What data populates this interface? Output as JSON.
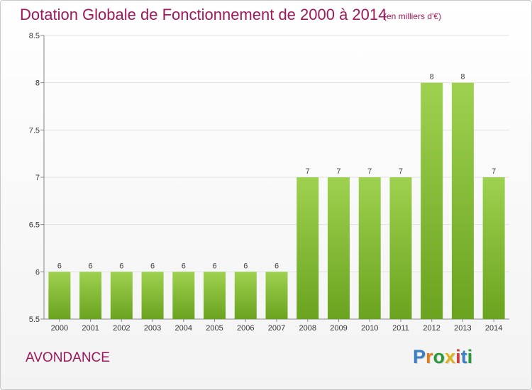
{
  "chart_data": {
    "type": "bar",
    "title": "Dotation Globale de Fonctionnement de 2000 à 2014",
    "subtitle": "(en milliers d'€)",
    "categories": [
      "2000",
      "2001",
      "2002",
      "2003",
      "2004",
      "2005",
      "2006",
      "2007",
      "2008",
      "2009",
      "2010",
      "2011",
      "2012",
      "2013",
      "2014"
    ],
    "values": [
      6,
      6,
      6,
      6,
      6,
      6,
      6,
      6,
      7,
      7,
      7,
      7,
      8,
      8,
      7
    ],
    "ylim": [
      5.5,
      8.5
    ],
    "yticks": [
      "5.5",
      "6",
      "6.5",
      "7",
      "7.5",
      "8",
      "8.5"
    ],
    "grid": true,
    "bar_color": "#8cc63f"
  },
  "commune": "AVONDANCE",
  "logo": {
    "letters": [
      "P",
      "r",
      "o",
      "x",
      "i",
      "t",
      "i"
    ],
    "colors": [
      "#3a7fc4",
      "#e07b1a",
      "#2a9a3a",
      "#e0b21a",
      "#d23c3c",
      "#3a7fc4",
      "#2a9a3a"
    ]
  }
}
